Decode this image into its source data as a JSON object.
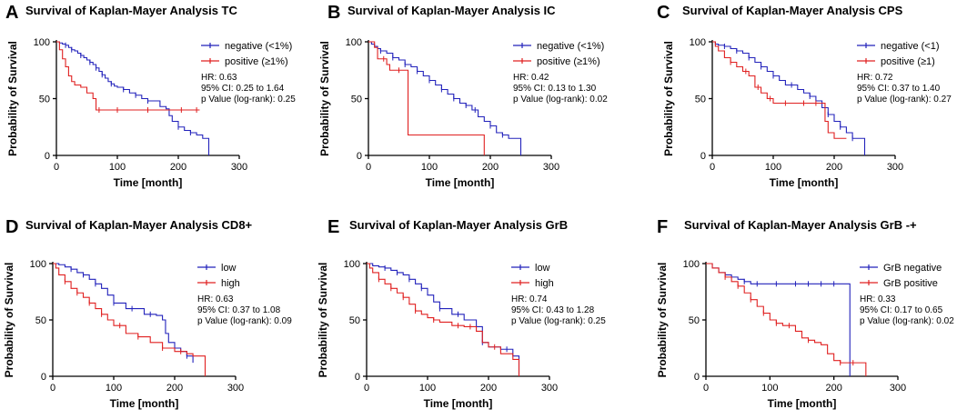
{
  "colors": {
    "neg": "#2222bb",
    "pos": "#e02020",
    "axis": "#000000"
  },
  "chart_data": [
    {
      "panel": "A",
      "type": "line",
      "title": "Survival of Kaplan-Mayer Analysis TC",
      "xlabel": "Time [month]",
      "ylabel": "Probability of Survival",
      "xlim": [
        0,
        300
      ],
      "ylim": [
        0,
        100
      ],
      "xticks": [
        "0",
        "100",
        "200",
        "300"
      ],
      "yticks": [
        "0",
        "50",
        "100"
      ],
      "series": [
        {
          "name": "negative (<1%)",
          "color": "neg",
          "x": [
            0,
            5,
            10,
            15,
            20,
            25,
            30,
            35,
            40,
            45,
            50,
            55,
            60,
            65,
            70,
            75,
            80,
            85,
            90,
            95,
            100,
            110,
            120,
            130,
            140,
            150,
            170,
            180,
            185,
            190,
            200,
            210,
            220,
            230,
            240,
            250
          ],
          "y": [
            100,
            99,
            98,
            97,
            95,
            93,
            92,
            90,
            88,
            86,
            84,
            82,
            80,
            77,
            74,
            71,
            68,
            65,
            63,
            61,
            60,
            58,
            55,
            53,
            50,
            48,
            43,
            41,
            35,
            30,
            25,
            22,
            20,
            18,
            15,
            0
          ],
          "censor_x": [
            15,
            25,
            40,
            55,
            65,
            75,
            90,
            110,
            130,
            150,
            200,
            220
          ]
        },
        {
          "name": "positive (≥1%)",
          "color": "pos",
          "x": [
            0,
            5,
            10,
            15,
            20,
            25,
            30,
            40,
            50,
            60,
            65,
            70,
            100,
            150,
            200,
            230,
            235
          ],
          "y": [
            100,
            93,
            85,
            78,
            70,
            65,
            62,
            60,
            55,
            50,
            40,
            40,
            40,
            40,
            40,
            40,
            40
          ],
          "censor_x": [
            70,
            100,
            150,
            205,
            230
          ]
        }
      ],
      "stats": [
        "HR: 0.63",
        "95% CI: 0.25 to 1.64",
        "p Value (log-rank): 0.25"
      ]
    },
    {
      "panel": "B",
      "type": "line",
      "title": "Survival of Kaplan-Mayer Analysis IC",
      "xlabel": "Time [month]",
      "ylabel": "Probability of Survival",
      "xlim": [
        0,
        300
      ],
      "ylim": [
        0,
        100
      ],
      "xticks": [
        "0",
        "100",
        "200",
        "300"
      ],
      "yticks": [
        "0",
        "50",
        "100"
      ],
      "series": [
        {
          "name": "negative (<1%)",
          "color": "neg",
          "x": [
            0,
            5,
            10,
            15,
            20,
            30,
            40,
            50,
            60,
            70,
            80,
            90,
            100,
            110,
            120,
            130,
            140,
            150,
            160,
            170,
            180,
            190,
            200,
            210,
            220,
            230,
            250
          ],
          "y": [
            100,
            98,
            96,
            94,
            92,
            90,
            86,
            84,
            80,
            78,
            74,
            70,
            66,
            62,
            58,
            54,
            50,
            46,
            44,
            40,
            34,
            30,
            26,
            20,
            18,
            15,
            0
          ],
          "censor_x": [
            20,
            40,
            60,
            80,
            100,
            120,
            140,
            160,
            175,
            200,
            220
          ]
        },
        {
          "name": "positive (≥1%)",
          "color": "pos",
          "x": [
            0,
            10,
            15,
            30,
            35,
            60,
            65,
            100,
            150,
            185,
            190
          ],
          "y": [
            100,
            95,
            85,
            80,
            75,
            75,
            18,
            18,
            18,
            18,
            0
          ],
          "censor_x": [
            25,
            50
          ]
        }
      ],
      "stats": [
        "HR: 0.42",
        "95% CI: 0.13 to 1.30",
        "p Value (log-rank): 0.02"
      ]
    },
    {
      "panel": "C",
      "type": "line",
      "title": "Survival of Kaplan-Mayer Analysis CPS",
      "xlabel": "Time [month]",
      "ylabel": "Probability of Survival",
      "xlim": [
        0,
        300
      ],
      "ylim": [
        0,
        100
      ],
      "xticks": [
        "0",
        "100",
        "200",
        "300"
      ],
      "yticks": [
        "0",
        "50",
        "100"
      ],
      "series": [
        {
          "name": "negative (<1)",
          "color": "neg",
          "x": [
            0,
            5,
            10,
            20,
            30,
            40,
            50,
            60,
            70,
            80,
            90,
            100,
            110,
            120,
            140,
            150,
            160,
            170,
            180,
            190,
            200,
            210,
            220,
            230,
            250
          ],
          "y": [
            100,
            98,
            97,
            96,
            94,
            92,
            90,
            86,
            82,
            78,
            74,
            70,
            66,
            62,
            58,
            55,
            52,
            48,
            42,
            36,
            30,
            25,
            20,
            15,
            0
          ],
          "censor_x": [
            20,
            40,
            60,
            80,
            100,
            130,
            160,
            190,
            210,
            230
          ]
        },
        {
          "name": "positive (≥1)",
          "color": "pos",
          "x": [
            0,
            5,
            10,
            20,
            30,
            40,
            50,
            60,
            70,
            80,
            90,
            100,
            150,
            180,
            185,
            190,
            200,
            210,
            220
          ],
          "y": [
            100,
            96,
            92,
            86,
            82,
            78,
            74,
            70,
            60,
            55,
            50,
            46,
            46,
            46,
            30,
            20,
            15,
            15,
            15
          ],
          "censor_x": [
            30,
            55,
            75,
            95,
            120,
            150,
            170
          ]
        }
      ],
      "stats": [
        "HR: 0.72",
        "95% CI: 0.37 to 1.40",
        "p Value (log-rank): 0.27"
      ]
    },
    {
      "panel": "D",
      "type": "line",
      "title": "Survival of Kaplan-Mayer Analysis CD8+",
      "xlabel": "Time [month]",
      "ylabel": "Probability of Survival",
      "xlim": [
        0,
        300
      ],
      "ylim": [
        0,
        100
      ],
      "xticks": [
        "0",
        "100",
        "200",
        "300"
      ],
      "yticks": [
        "0",
        "50",
        "100"
      ],
      "series": [
        {
          "name": "low",
          "color": "neg",
          "x": [
            0,
            10,
            20,
            30,
            40,
            50,
            60,
            70,
            80,
            90,
            100,
            120,
            150,
            170,
            180,
            185,
            190,
            200,
            210,
            220,
            230
          ],
          "y": [
            100,
            99,
            97,
            95,
            92,
            90,
            86,
            82,
            78,
            72,
            65,
            60,
            55,
            54,
            50,
            38,
            30,
            25,
            22,
            18,
            12
          ],
          "censor_x": [
            30,
            50,
            70,
            100,
            130,
            160,
            200,
            220
          ]
        },
        {
          "name": "high",
          "color": "pos",
          "x": [
            0,
            5,
            10,
            20,
            30,
            40,
            50,
            60,
            70,
            80,
            90,
            100,
            120,
            140,
            160,
            180,
            200,
            220,
            230,
            250
          ],
          "y": [
            100,
            96,
            90,
            84,
            78,
            74,
            70,
            65,
            60,
            55,
            50,
            45,
            38,
            35,
            30,
            25,
            22,
            20,
            18,
            0
          ],
          "censor_x": [
            20,
            40,
            60,
            80,
            110,
            140,
            180,
            210
          ]
        }
      ],
      "stats": [
        "HR: 0.63",
        "95% CI: 0.37 to 1.08",
        "p Value (log-rank): 0.09"
      ]
    },
    {
      "panel": "E",
      "type": "line",
      "title": "Survival of Kaplan-Mayer Analysis GrB",
      "xlabel": "Time [month]",
      "ylabel": "Probability of Survival",
      "xlim": [
        0,
        300
      ],
      "ylim": [
        0,
        100
      ],
      "xticks": [
        "0",
        "100",
        "200",
        "300"
      ],
      "yticks": [
        "0",
        "50",
        "100"
      ],
      "series": [
        {
          "name": "low",
          "color": "neg",
          "x": [
            0,
            10,
            20,
            30,
            40,
            50,
            60,
            70,
            80,
            90,
            100,
            110,
            120,
            140,
            160,
            180,
            190,
            200,
            220,
            240,
            250
          ],
          "y": [
            100,
            98,
            97,
            96,
            94,
            92,
            90,
            86,
            82,
            78,
            72,
            66,
            60,
            55,
            50,
            44,
            30,
            26,
            24,
            18,
            0
          ],
          "censor_x": [
            30,
            50,
            70,
            90,
            120,
            150,
            190,
            230
          ]
        },
        {
          "name": "high",
          "color": "pos",
          "x": [
            0,
            5,
            10,
            20,
            30,
            40,
            50,
            60,
            70,
            80,
            90,
            100,
            110,
            120,
            140,
            160,
            180,
            190,
            200,
            220,
            240,
            250
          ],
          "y": [
            100,
            96,
            92,
            86,
            82,
            78,
            74,
            70,
            64,
            58,
            55,
            52,
            50,
            48,
            45,
            44,
            40,
            30,
            26,
            20,
            15,
            0
          ],
          "censor_x": [
            20,
            40,
            60,
            80,
            110,
            150,
            170,
            210
          ]
        }
      ],
      "stats": [
        "HR: 0.74",
        "95% CI: 0.43 to 1.28",
        "p Value (log-rank): 0.25"
      ]
    },
    {
      "panel": "F",
      "type": "line",
      "title": "Survival of Kaplan-Mayer Analysis GrB -+",
      "xlabel": "Time [month]",
      "ylabel": "Probability of Survival",
      "xlim": [
        0,
        300
      ],
      "ylim": [
        0,
        100
      ],
      "xticks": [
        "0",
        "100",
        "200",
        "300"
      ],
      "yticks": [
        "0",
        "50",
        "100"
      ],
      "series": [
        {
          "name": "GrB negative",
          "color": "neg",
          "x": [
            0,
            10,
            20,
            30,
            40,
            50,
            60,
            70,
            220,
            225
          ],
          "y": [
            100,
            96,
            92,
            90,
            88,
            86,
            84,
            82,
            82,
            0
          ],
          "censor_x": [
            30,
            60,
            80,
            110,
            140,
            160,
            180,
            200
          ]
        },
        {
          "name": "GrB positive",
          "color": "pos",
          "x": [
            0,
            10,
            20,
            30,
            40,
            50,
            60,
            70,
            80,
            90,
            100,
            110,
            120,
            140,
            150,
            160,
            170,
            180,
            190,
            200,
            210,
            220,
            230,
            250
          ],
          "y": [
            100,
            96,
            92,
            88,
            84,
            80,
            74,
            68,
            62,
            56,
            50,
            47,
            45,
            40,
            34,
            32,
            30,
            28,
            20,
            14,
            12,
            12,
            12,
            0
          ],
          "censor_x": [
            30,
            50,
            70,
            90,
            110,
            130,
            160,
            210,
            230
          ]
        }
      ],
      "stats": [
        "HR: 0.33",
        "95% CI: 0.17 to 0.65",
        "p Value (log-rank): 0.02"
      ]
    }
  ]
}
